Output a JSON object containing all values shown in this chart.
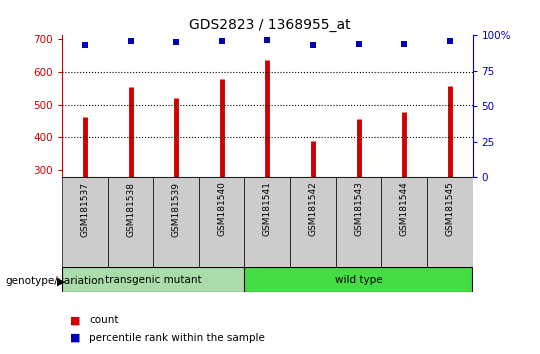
{
  "title": "GDS2823 / 1368955_at",
  "samples": [
    "GSM181537",
    "GSM181538",
    "GSM181539",
    "GSM181540",
    "GSM181541",
    "GSM181542",
    "GSM181543",
    "GSM181544",
    "GSM181545"
  ],
  "counts": [
    463,
    554,
    521,
    578,
    635,
    388,
    457,
    478,
    555
  ],
  "percentile_ranks": [
    93,
    96,
    95,
    96,
    97,
    93,
    94,
    94,
    96
  ],
  "bar_color": "#CC0000",
  "dot_color": "#0000BB",
  "ylim_left": [
    280,
    710
  ],
  "ylim_right": [
    0,
    100
  ],
  "yticks_left": [
    300,
    400,
    500,
    600,
    700
  ],
  "yticks_right": [
    0,
    25,
    50,
    75,
    100
  ],
  "grid_values": [
    400,
    500,
    600
  ],
  "background_color": "#ffffff",
  "sample_bg_color": "#cccccc",
  "transgenic_color": "#aaddaa",
  "wildtype_color": "#44dd44",
  "transgenic_count": 4,
  "wildtype_count": 5,
  "legend_count_label": "count",
  "legend_pct_label": "percentile rank within the sample",
  "genotype_label": "genotype/variation"
}
